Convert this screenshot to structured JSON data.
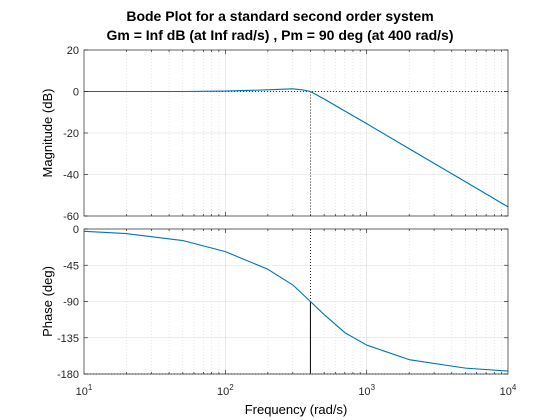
{
  "chart_data": {
    "type": "line",
    "title": "Bode Plot for a standard second order system",
    "subtitle": "Gm = Inf dB (at Inf rad/s) ,  Pm = 90 deg (at 400 rad/s)",
    "xlabel": "Frequency  (rad/s)",
    "x_scale": "log",
    "xlim": [
      10,
      10000
    ],
    "x_tick_labels": [
      {
        "base": "10",
        "exp": "1"
      },
      {
        "base": "10",
        "exp": "2"
      },
      {
        "base": "10",
        "exp": "3"
      },
      {
        "base": "10",
        "exp": "4"
      }
    ],
    "grid": true,
    "line_color": "#0072BD",
    "marker_color": "#000000",
    "crossover_frequency": 400,
    "crossover_phase": -90,
    "panels": [
      {
        "ylabel": "Magnitude (dB)",
        "ylim": [
          -60,
          20
        ],
        "y_ticks": [
          20,
          0,
          -20,
          -40,
          -60
        ],
        "series": {
          "x": [
            10,
            50,
            100,
            200,
            300,
            350,
            400,
            500,
            700,
            1000,
            2000,
            5000,
            10000
          ],
          "y": [
            0,
            0,
            0.2,
            0.8,
            1.3,
            0.8,
            0,
            -3.6,
            -9.4,
            -15.5,
            -27.6,
            -43.5,
            -55.6
          ]
        },
        "reference_level": 0
      },
      {
        "ylabel": "Phase (deg)",
        "ylim": [
          -180,
          0
        ],
        "y_ticks": [
          0,
          -45,
          -90,
          -135,
          -180
        ],
        "series": {
          "x": [
            10,
            20,
            50,
            100,
            200,
            300,
            400,
            500,
            700,
            1000,
            2000,
            5000,
            10000
          ],
          "y": [
            -2.9,
            -5.7,
            -14.3,
            -28.1,
            -50,
            -69.4,
            -90,
            -106.2,
            -128.6,
            -144.1,
            -162.2,
            -172.7,
            -176.4
          ]
        },
        "reference_level": -180
      }
    ]
  }
}
